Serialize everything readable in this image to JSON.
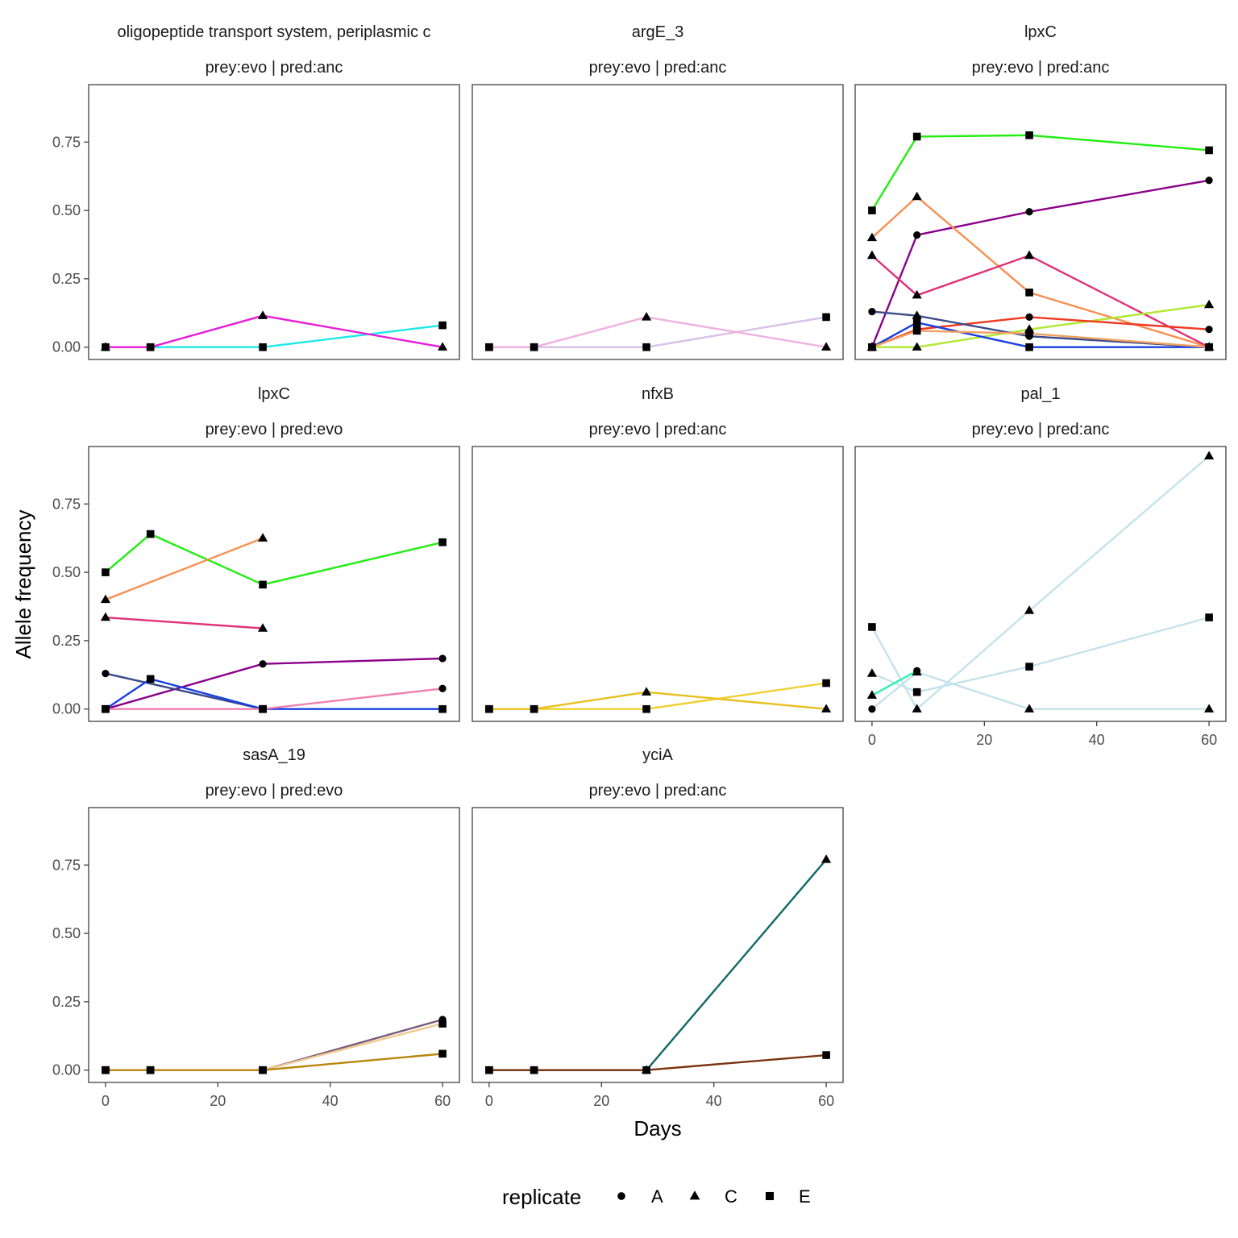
{
  "chart_data": {
    "type": "line",
    "xlabel": "Days",
    "ylabel": "Allele frequency",
    "xlim": [
      -3,
      63
    ],
    "ylim": [
      -0.045,
      0.96
    ],
    "x_ticks": [
      0,
      20,
      40,
      60
    ],
    "y_ticks": [
      0.0,
      0.25,
      0.5,
      0.75
    ],
    "x_tick_labels": [
      "0",
      "20",
      "40",
      "60"
    ],
    "y_tick_labels": [
      "0.00",
      "0.25",
      "0.50",
      "0.75"
    ],
    "legend": {
      "title": "replicate",
      "placement": "bottom",
      "entries": [
        {
          "label": "A",
          "shape": "circle"
        },
        {
          "label": "C",
          "shape": "triangle"
        },
        {
          "label": "E",
          "shape": "square"
        }
      ]
    },
    "panels": [
      {
        "gene": "oligopeptide transport system, periplasmic c",
        "condition": "prey:evo | pred:anc",
        "show_x_axis": false,
        "show_y_axis": true,
        "series": [
          {
            "color": "#1de8e8",
            "points": [
              {
                "x": 0,
                "y": 0,
                "rep": "C"
              },
              {
                "x": 8,
                "y": 0,
                "rep": "E"
              },
              {
                "x": 28,
                "y": 0,
                "rep": "E"
              },
              {
                "x": 60,
                "y": 0.08,
                "rep": "E"
              }
            ]
          },
          {
            "color": "#e81dd9",
            "points": [
              {
                "x": 0,
                "y": 0,
                "rep": "E"
              },
              {
                "x": 8,
                "y": 0,
                "rep": "E"
              },
              {
                "x": 28,
                "y": 0.115,
                "rep": "C"
              },
              {
                "x": 60,
                "y": 0,
                "rep": "C"
              }
            ]
          }
        ]
      },
      {
        "gene": "argE_3",
        "condition": "prey:evo | pred:anc",
        "show_x_axis": false,
        "show_y_axis": false,
        "series": [
          {
            "color": "#d8c0e8",
            "points": [
              {
                "x": 0,
                "y": 0,
                "rep": "E"
              },
              {
                "x": 8,
                "y": 0,
                "rep": "E"
              },
              {
                "x": 28,
                "y": 0,
                "rep": "E"
              },
              {
                "x": 60,
                "y": 0.11,
                "rep": "E"
              }
            ]
          },
          {
            "color": "#f0b0e0",
            "points": [
              {
                "x": 0,
                "y": 0,
                "rep": "E"
              },
              {
                "x": 8,
                "y": 0,
                "rep": "E"
              },
              {
                "x": 28,
                "y": 0.11,
                "rep": "C"
              },
              {
                "x": 60,
                "y": 0,
                "rep": "C"
              }
            ]
          }
        ]
      },
      {
        "gene": "lpxC",
        "condition": "prey:evo | pred:anc",
        "show_x_axis": false,
        "show_y_axis": false,
        "series": [
          {
            "color": "#22ee11",
            "points": [
              {
                "x": 0,
                "y": 0.5,
                "rep": "E"
              },
              {
                "x": 8,
                "y": 0.77,
                "rep": "E"
              },
              {
                "x": 28,
                "y": 0.775,
                "rep": "E"
              },
              {
                "x": 60,
                "y": 0.72,
                "rep": "E"
              }
            ]
          },
          {
            "color": "#8b008b",
            "points": [
              {
                "x": 0,
                "y": 0,
                "rep": "E"
              },
              {
                "x": 8,
                "y": 0.41,
                "rep": "A"
              },
              {
                "x": 28,
                "y": 0.495,
                "rep": "A"
              },
              {
                "x": 60,
                "y": 0.61,
                "rep": "A"
              }
            ]
          },
          {
            "color": "#f59050",
            "points": [
              {
                "x": 0,
                "y": 0.4,
                "rep": "C"
              },
              {
                "x": 8,
                "y": 0.55,
                "rep": "C"
              },
              {
                "x": 28,
                "y": 0.2,
                "rep": "E"
              },
              {
                "x": 60,
                "y": 0,
                "rep": "C"
              }
            ]
          },
          {
            "color": "#e03078",
            "points": [
              {
                "x": 0,
                "y": 0.335,
                "rep": "C"
              },
              {
                "x": 8,
                "y": 0.19,
                "rep": "C"
              },
              {
                "x": 28,
                "y": 0.335,
                "rep": "C"
              },
              {
                "x": 60,
                "y": 0,
                "rep": "C"
              }
            ]
          },
          {
            "color": "#b0e830",
            "points": [
              {
                "x": 0,
                "y": 0,
                "rep": "C"
              },
              {
                "x": 8,
                "y": 0,
                "rep": "C"
              },
              {
                "x": 28,
                "y": 0.065,
                "rep": "C"
              },
              {
                "x": 60,
                "y": 0.155,
                "rep": "C"
              }
            ]
          },
          {
            "color": "#f03820",
            "points": [
              {
                "x": 0,
                "y": 0,
                "rep": "C"
              },
              {
                "x": 8,
                "y": 0.065,
                "rep": "E"
              },
              {
                "x": 28,
                "y": 0.11,
                "rep": "A"
              },
              {
                "x": 60,
                "y": 0.065,
                "rep": "A"
              }
            ]
          },
          {
            "color": "#3a4a8a",
            "points": [
              {
                "x": 0,
                "y": 0.13,
                "rep": "A"
              },
              {
                "x": 8,
                "y": 0.115,
                "rep": "C"
              },
              {
                "x": 28,
                "y": 0.04,
                "rep": "A"
              },
              {
                "x": 60,
                "y": 0,
                "rep": "A"
              }
            ]
          },
          {
            "color": "#1840e0",
            "points": [
              {
                "x": 0,
                "y": 0,
                "rep": "C"
              },
              {
                "x": 8,
                "y": 0.09,
                "rep": "E"
              },
              {
                "x": 28,
                "y": 0,
                "rep": "E"
              },
              {
                "x": 60,
                "y": 0,
                "rep": "E"
              }
            ]
          },
          {
            "color": "#f0a060",
            "points": [
              {
                "x": 0,
                "y": 0,
                "rep": "E"
              },
              {
                "x": 8,
                "y": 0.06,
                "rep": "E"
              },
              {
                "x": 28,
                "y": 0.05,
                "rep": "E"
              },
              {
                "x": 60,
                "y": 0,
                "rep": "E"
              }
            ]
          }
        ]
      },
      {
        "gene": "lpxC",
        "condition": "prey:evo | pred:evo",
        "show_x_axis": false,
        "show_y_axis": true,
        "series": [
          {
            "color": "#22ee11",
            "points": [
              {
                "x": 0,
                "y": 0.5,
                "rep": "E"
              },
              {
                "x": 8,
                "y": 0.64,
                "rep": "E"
              },
              {
                "x": 28,
                "y": 0.455,
                "rep": "E"
              },
              {
                "x": 60,
                "y": 0.61,
                "rep": "E"
              }
            ]
          },
          {
            "color": "#f59050",
            "points": [
              {
                "x": 0,
                "y": 0.4,
                "rep": "C"
              },
              {
                "x": 28,
                "y": 0.625,
                "rep": "C"
              }
            ]
          },
          {
            "color": "#e03078",
            "points": [
              {
                "x": 0,
                "y": 0.335,
                "rep": "C"
              },
              {
                "x": 28,
                "y": 0.295,
                "rep": "C"
              }
            ]
          },
          {
            "color": "#8b008b",
            "points": [
              {
                "x": 0,
                "y": 0,
                "rep": "E"
              },
              {
                "x": 28,
                "y": 0.165,
                "rep": "A"
              },
              {
                "x": 60,
                "y": 0.185,
                "rep": "A"
              }
            ]
          },
          {
            "color": "#3a4a8a",
            "points": [
              {
                "x": 0,
                "y": 0.13,
                "rep": "A"
              },
              {
                "x": 28,
                "y": 0,
                "rep": "E"
              }
            ]
          },
          {
            "color": "#1840e0",
            "points": [
              {
                "x": 0,
                "y": 0,
                "rep": "E"
              },
              {
                "x": 8,
                "y": 0.11,
                "rep": "E"
              },
              {
                "x": 28,
                "y": 0,
                "rep": "E"
              },
              {
                "x": 60,
                "y": 0,
                "rep": "E"
              }
            ]
          },
          {
            "color": "#f080b0",
            "points": [
              {
                "x": 0,
                "y": 0,
                "rep": "E"
              },
              {
                "x": 28,
                "y": 0,
                "rep": "E"
              },
              {
                "x": 60,
                "y": 0.075,
                "rep": "A"
              }
            ]
          }
        ]
      },
      {
        "gene": "nfxB",
        "condition": "prey:evo | pred:anc",
        "show_x_axis": false,
        "show_y_axis": false,
        "series": [
          {
            "color": "#f0d030",
            "points": [
              {
                "x": 0,
                "y": 0,
                "rep": "E"
              },
              {
                "x": 8,
                "y": 0,
                "rep": "E"
              },
              {
                "x": 28,
                "y": 0,
                "rep": "E"
              },
              {
                "x": 60,
                "y": 0.095,
                "rep": "E"
              }
            ]
          },
          {
            "color": "#e8c020",
            "points": [
              {
                "x": 0,
                "y": 0,
                "rep": "E"
              },
              {
                "x": 8,
                "y": 0,
                "rep": "E"
              },
              {
                "x": 28,
                "y": 0.062,
                "rep": "C"
              },
              {
                "x": 60,
                "y": 0,
                "rep": "C"
              }
            ]
          }
        ]
      },
      {
        "gene": "pal_1",
        "condition": "prey:evo | pred:anc",
        "show_x_axis": true,
        "show_y_axis": false,
        "series": [
          {
            "color": "#c4e2ec",
            "points": [
              {
                "x": 0,
                "y": 0,
                "rep": "A"
              },
              {
                "x": 8,
                "y": 0.135,
                "rep": "C"
              },
              {
                "x": 28,
                "y": 0,
                "rep": "C"
              },
              {
                "x": 60,
                "y": 0,
                "rep": "C"
              }
            ]
          },
          {
            "color": "#c4e2ec",
            "points": [
              {
                "x": 0,
                "y": 0.3,
                "rep": "E"
              },
              {
                "x": 8,
                "y": 0,
                "rep": "C"
              },
              {
                "x": 28,
                "y": 0.36,
                "rep": "C"
              },
              {
                "x": 60,
                "y": 0.925,
                "rep": "C"
              }
            ]
          },
          {
            "color": "#c4e2ec",
            "points": [
              {
                "x": 0,
                "y": 0.13,
                "rep": "C"
              },
              {
                "x": 8,
                "y": 0.062,
                "rep": "E"
              },
              {
                "x": 28,
                "y": 0.155,
                "rep": "E"
              },
              {
                "x": 60,
                "y": 0.335,
                "rep": "E"
              }
            ]
          },
          {
            "color": "#30f0b0",
            "points": [
              {
                "x": 0,
                "y": 0.05,
                "rep": "C"
              },
              {
                "x": 8,
                "y": 0.14,
                "rep": "A"
              }
            ]
          }
        ]
      },
      {
        "gene": "sasA_19",
        "condition": "prey:evo | pred:evo",
        "show_x_axis": true,
        "show_y_axis": true,
        "series": [
          {
            "color": "#7a5a7a",
            "points": [
              {
                "x": 0,
                "y": 0,
                "rep": "E"
              },
              {
                "x": 8,
                "y": 0,
                "rep": "E"
              },
              {
                "x": 28,
                "y": 0,
                "rep": "E"
              },
              {
                "x": 60,
                "y": 0.185,
                "rep": "A"
              }
            ]
          },
          {
            "color": "#f0c890",
            "points": [
              {
                "x": 0,
                "y": 0,
                "rep": "E"
              },
              {
                "x": 8,
                "y": 0,
                "rep": "E"
              },
              {
                "x": 28,
                "y": 0,
                "rep": "E"
              },
              {
                "x": 60,
                "y": 0.17,
                "rep": "E"
              }
            ]
          },
          {
            "color": "#b8860b",
            "points": [
              {
                "x": 0,
                "y": 0,
                "rep": "E"
              },
              {
                "x": 8,
                "y": 0,
                "rep": "E"
              },
              {
                "x": 28,
                "y": 0,
                "rep": "E"
              },
              {
                "x": 60,
                "y": 0.06,
                "rep": "E"
              }
            ]
          }
        ]
      },
      {
        "gene": "yciA",
        "condition": "prey:evo | pred:anc",
        "show_x_axis": true,
        "show_y_axis": false,
        "series": [
          {
            "color": "#106868",
            "points": [
              {
                "x": 0,
                "y": 0,
                "rep": "E"
              },
              {
                "x": 8,
                "y": 0,
                "rep": "E"
              },
              {
                "x": 28,
                "y": 0,
                "rep": "C"
              },
              {
                "x": 60,
                "y": 0.77,
                "rep": "C"
              }
            ]
          },
          {
            "color": "#7a3410",
            "points": [
              {
                "x": 0,
                "y": 0,
                "rep": "E"
              },
              {
                "x": 8,
                "y": 0,
                "rep": "E"
              },
              {
                "x": 28,
                "y": 0,
                "rep": "E"
              },
              {
                "x": 60,
                "y": 0.055,
                "rep": "E"
              }
            ]
          }
        ]
      }
    ]
  }
}
